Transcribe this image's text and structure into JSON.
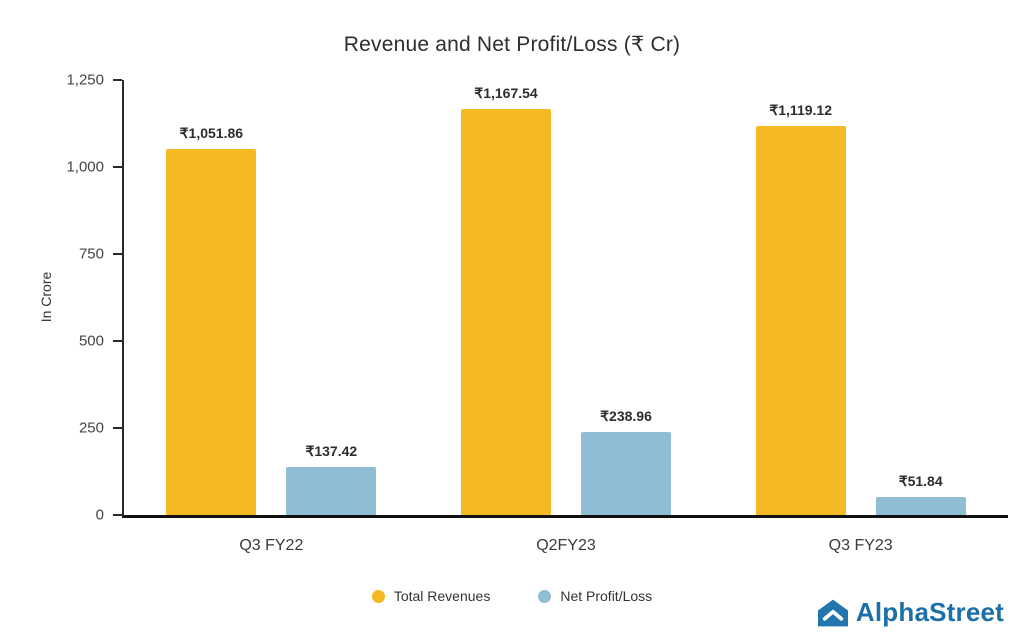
{
  "title": "Revenue and Net Profit/Loss (₹ Cr)",
  "chart_data": {
    "type": "bar",
    "categories": [
      "Q3 FY22",
      "Q2FY23",
      "Q3 FY23"
    ],
    "series": [
      {
        "name": "Total Revenues",
        "color": "#F6B926",
        "values": [
          1051.86,
          1167.54,
          1119.12
        ],
        "value_labels": [
          "₹1,051.86",
          "₹1,167.54",
          "₹1,119.12"
        ]
      },
      {
        "name": "Net Profit/Loss",
        "color": "#8FBDD3",
        "values": [
          137.42,
          238.96,
          51.84
        ],
        "value_labels": [
          "₹137.42",
          "₹238.96",
          "₹51.84"
        ]
      }
    ],
    "ylabel": "In Crore",
    "ylim": [
      0,
      1250
    ],
    "yticks": [
      "0",
      "250",
      "500",
      "750",
      "1,000",
      "1,250"
    ],
    "grid": false,
    "legend_position": "bottom"
  },
  "branding": {
    "name": "AlphaStreet",
    "color": "#1C6FA8",
    "icon": "alphastreet-chevron-icon",
    "icon_color": "#2176AE"
  }
}
